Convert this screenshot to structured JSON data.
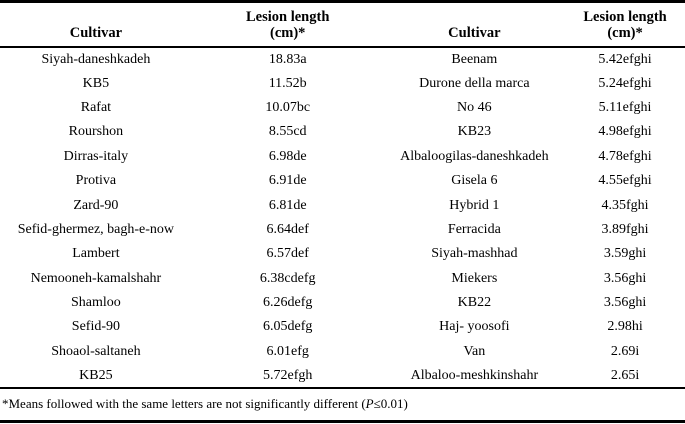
{
  "table": {
    "columns": [
      {
        "id": "cultivar-left",
        "lines": [
          "Cultivar"
        ]
      },
      {
        "id": "lesion-left",
        "lines": [
          "Lesion length",
          "(cm)*"
        ]
      },
      {
        "id": "cultivar-right",
        "lines": [
          "Cultivar"
        ]
      },
      {
        "id": "lesion-right",
        "lines": [
          "Lesion length",
          "(cm)*"
        ]
      }
    ],
    "rows": [
      [
        "Siyah-daneshkadeh",
        "18.83a",
        "Beenam",
        "5.42efghi"
      ],
      [
        "KB5",
        "11.52b",
        "Durone della marca",
        "5.24efghi"
      ],
      [
        "Rafat",
        "10.07bc",
        "No 46",
        "5.11efghi"
      ],
      [
        "Rourshon",
        "8.55cd",
        "KB23",
        "4.98efghi"
      ],
      [
        "Dirras-italy",
        "6.98de",
        "Albaloogilas-daneshkadeh",
        "4.78efghi"
      ],
      [
        "Protiva",
        "6.91de",
        "Gisela 6",
        "4.55efghi"
      ],
      [
        "Zard-90",
        "6.81de",
        "Hybrid 1",
        "4.35fghi"
      ],
      [
        "Sefid-ghermez, bagh-e-now",
        "6.64def",
        "Ferracida",
        "3.89fghi"
      ],
      [
        "Lambert",
        "6.57def",
        "Siyah-mashhad",
        "3.59ghi"
      ],
      [
        "Nemooneh-kamalshahr",
        "6.38cdefg",
        "Miekers",
        "3.56ghi"
      ],
      [
        "Shamloo",
        "6.26defg",
        "KB22",
        "3.56ghi"
      ],
      [
        "Sefid-90",
        "6.05defg",
        "Haj- yoosofi",
        "2.98hi"
      ],
      [
        "Shoaol-saltaneh",
        "6.01efg",
        "Van",
        "2.69i"
      ],
      [
        "KB25",
        "5.72efgh",
        "Albaloo-meshkinshahr",
        "2.65i"
      ]
    ]
  },
  "footnote": {
    "prefix": "*Means followed with the same letters are not significantly different (",
    "p_symbol": "P",
    "suffix": "≤0.01)"
  },
  "colors": {
    "text": "#000000",
    "rule": "#000000",
    "background": "#ffffff"
  }
}
